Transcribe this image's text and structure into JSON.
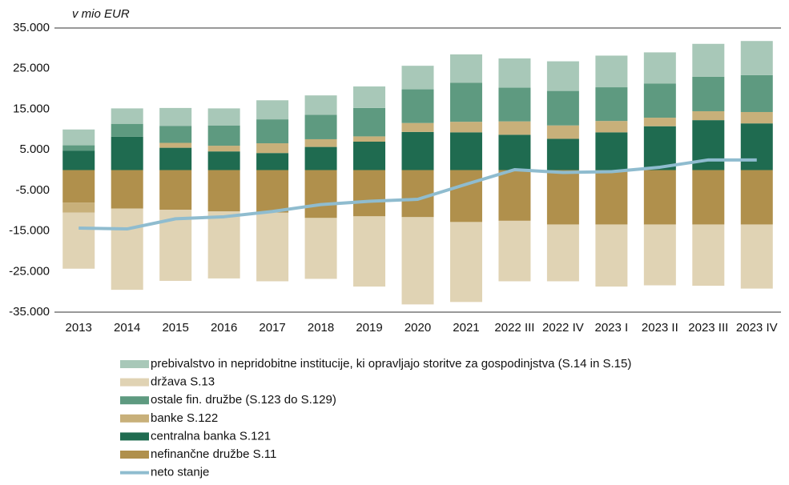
{
  "chart_data": {
    "type": "bar",
    "stacked": true,
    "title": "v mio EUR",
    "categories": [
      "2013",
      "2014",
      "2015",
      "2016",
      "2017",
      "2018",
      "2019",
      "2020",
      "2021",
      "2022 III",
      "2022 IV",
      "2023 I",
      "2023 II",
      "2023 III",
      "2023 IV"
    ],
    "series": [
      {
        "name": "prebivalstvo in nepridobitne institucije, ki opravljajo storitve za gospodinjstva (S.14 in S.15)",
        "color": "#a8c8b8",
        "values": [
          3900,
          3800,
          4400,
          4200,
          4700,
          4800,
          5300,
          5800,
          7000,
          7200,
          7300,
          7800,
          7700,
          8100,
          8400
        ]
      },
      {
        "name": "država S.13",
        "color": "#e0d3b4",
        "values": [
          -13800,
          -20000,
          -17500,
          -16500,
          -16900,
          -15000,
          -17300,
          -21500,
          -19700,
          -14900,
          -14000,
          -15300,
          -15000,
          -15100,
          -15800
        ]
      },
      {
        "name": "ostale fin. družbe (S.123 do S.129)",
        "color": "#5e9a80",
        "values": [
          1300,
          3200,
          4200,
          5000,
          5900,
          6000,
          7000,
          8300,
          9600,
          8300,
          8500,
          8300,
          8400,
          8500,
          9100
        ]
      },
      {
        "name": "banke S.122",
        "color": "#c8b07a",
        "values": [
          -2500,
          0,
          1200,
          1400,
          2400,
          1900,
          1300,
          2200,
          2600,
          3300,
          3300,
          2800,
          2100,
          2200,
          2800
        ]
      },
      {
        "name": "centralna banka S.121",
        "color": "#1f6b50",
        "values": [
          4800,
          8200,
          5500,
          4600,
          4200,
          5700,
          7000,
          9400,
          9300,
          8700,
          7700,
          9300,
          10800,
          12300,
          11500
        ]
      },
      {
        "name": "nefinančne družbe S.11",
        "color": "#b0904c",
        "values": [
          -8000,
          -9500,
          -9800,
          -10200,
          -10500,
          -11800,
          -11400,
          -11600,
          -12800,
          -12500,
          -13400,
          -13400,
          -13400,
          -13400,
          -13400
        ]
      },
      {
        "name": "neto stanje",
        "type": "line",
        "color": "#8fbccf",
        "values": [
          -14300,
          -14500,
          -12000,
          -11500,
          -10200,
          -8500,
          -7700,
          -7200,
          -3500,
          100,
          -600,
          -400,
          700,
          2500,
          2500
        ]
      }
    ],
    "ylim": [
      -35000,
      35000
    ],
    "yticks": [
      {
        "value": 35000,
        "label": "35.000"
      },
      {
        "value": 25000,
        "label": "25.000"
      },
      {
        "value": 15000,
        "label": "15.000"
      },
      {
        "value": 5000,
        "label": "5.000"
      },
      {
        "value": -5000,
        "label": "-5.000"
      },
      {
        "value": -15000,
        "label": "-15.000"
      },
      {
        "value": -25000,
        "label": "-25.000"
      },
      {
        "value": -35000,
        "label": "-35.000"
      }
    ],
    "grid": false,
    "legend": "bottom"
  }
}
